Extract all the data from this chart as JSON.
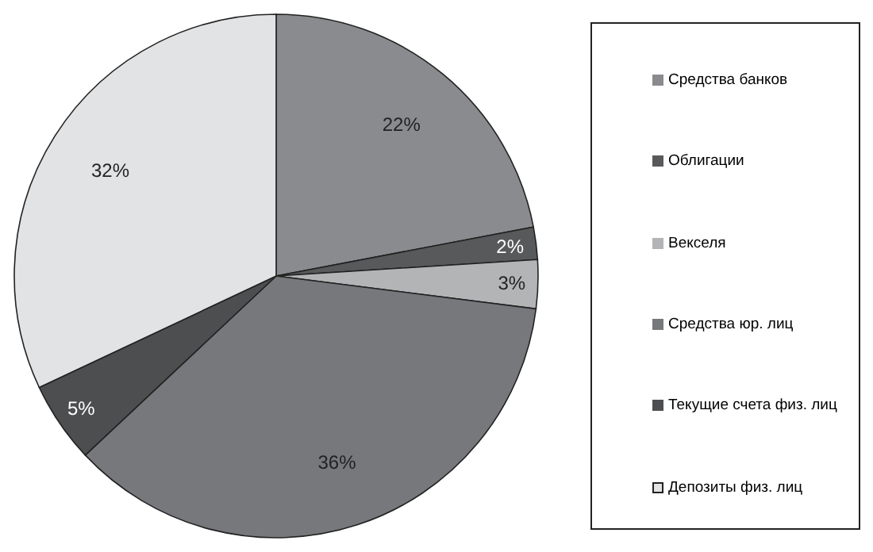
{
  "chart_data": {
    "type": "pie",
    "categories": [
      "Средства банков",
      "Облигации",
      "Векселя",
      "Средства юр. лиц",
      "Текущие счета физ. лиц",
      "Депозиты физ. лиц"
    ],
    "values": [
      22,
      2,
      3,
      36,
      5,
      32
    ],
    "colors": [
      "#8a8b8f",
      "#58595b",
      "#b3b4b6",
      "#77787c",
      "#4d4e50",
      "#e2e3e5"
    ],
    "value_labels": [
      "22%",
      "2%",
      "3%",
      "36%",
      "5%",
      "32%"
    ],
    "legend": "right"
  }
}
